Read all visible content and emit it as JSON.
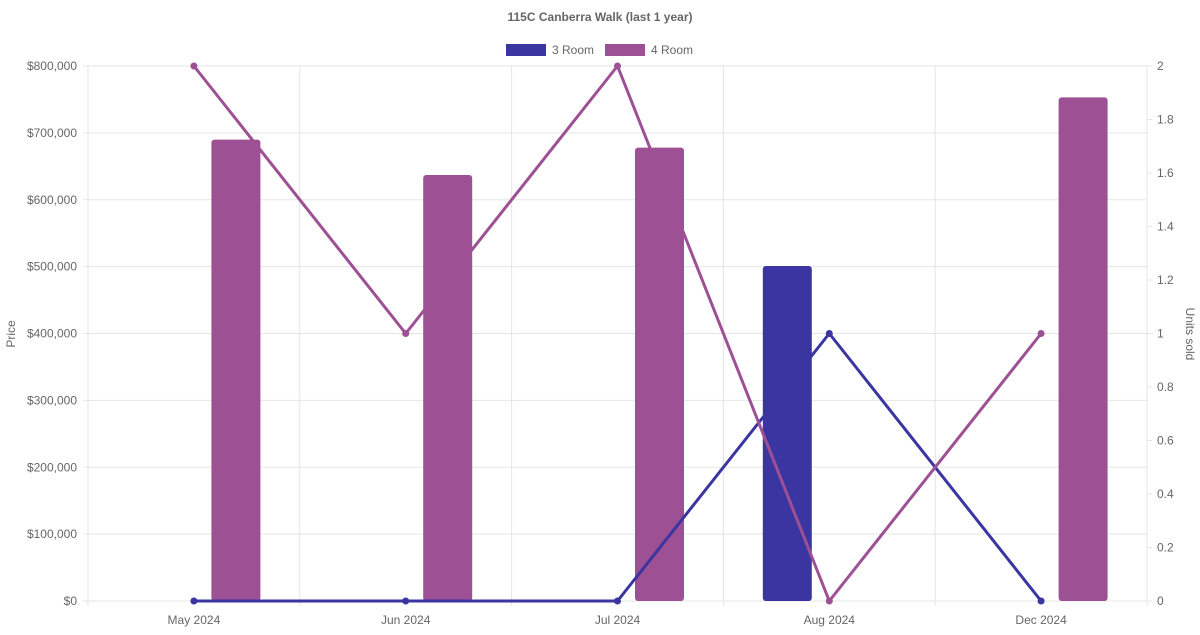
{
  "chart_data": {
    "type": "bar",
    "title": "115C Canberra Walk (last 1 year)",
    "categories": [
      "May 2024",
      "Jun 2024",
      "Jul 2024",
      "Aug 2024",
      "Dec 2024"
    ],
    "y_left": {
      "label": "Price",
      "ylim": [
        0,
        800000
      ],
      "ticks": [
        "$0",
        "$100,000",
        "$200,000",
        "$300,000",
        "$400,000",
        "$500,000",
        "$600,000",
        "$700,000",
        "$800,000"
      ]
    },
    "y_right": {
      "label": "Units sold",
      "ylim": [
        0,
        2
      ],
      "ticks": [
        "0",
        "0.2",
        "0.4",
        "0.6",
        "0.8",
        "1",
        "1.2",
        "1.4",
        "1.6",
        "1.8",
        "2"
      ]
    },
    "legend_position": "top",
    "grid": true,
    "series": [
      {
        "name": "3 Room",
        "color": "#3a35a0",
        "price": [
          0,
          0,
          0,
          501000,
          0
        ],
        "units": [
          0,
          0,
          0,
          1,
          0
        ]
      },
      {
        "name": "4 Room",
        "color": "#9e5094",
        "price": [
          690000,
          637000,
          678000,
          0,
          753000
        ],
        "units": [
          2,
          1,
          2,
          0,
          1
        ]
      }
    ]
  }
}
